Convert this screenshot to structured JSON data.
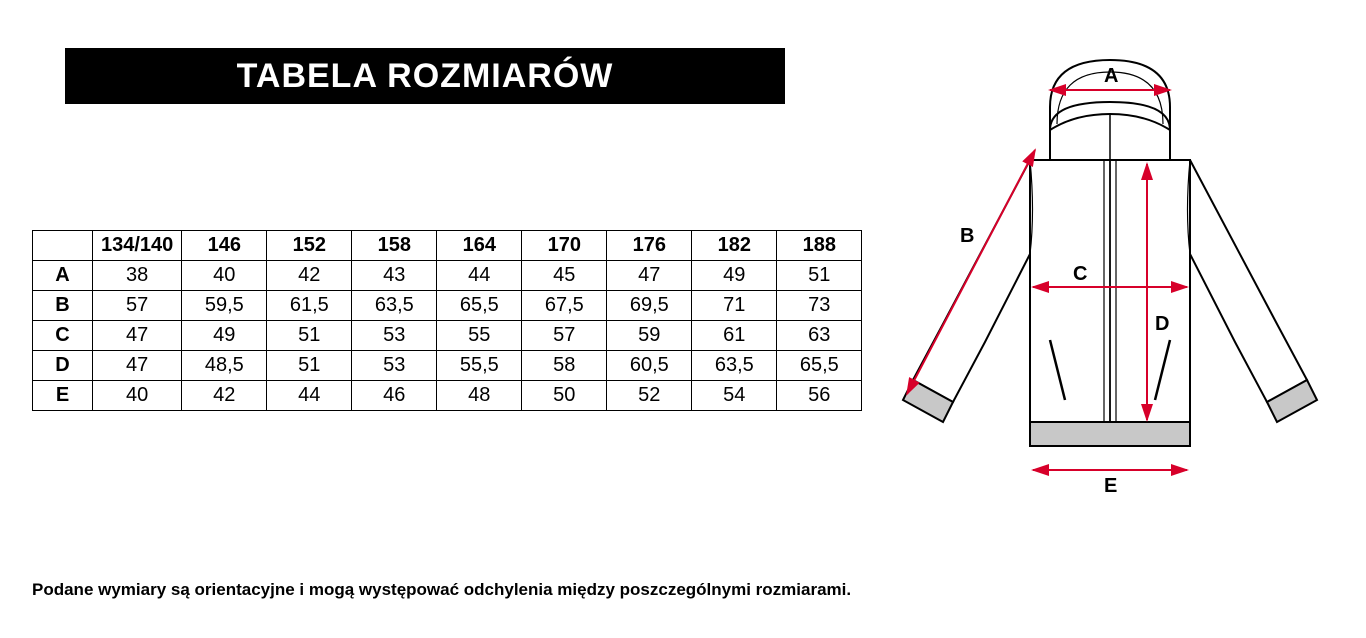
{
  "title": "TABELA ROZMIARÓW",
  "table": {
    "columns": [
      "134/140",
      "146",
      "152",
      "158",
      "164",
      "170",
      "176",
      "182",
      "188"
    ],
    "rows": [
      {
        "label": "A",
        "values": [
          "38",
          "40",
          "42",
          "43",
          "44",
          "45",
          "47",
          "49",
          "51"
        ]
      },
      {
        "label": "B",
        "values": [
          "57",
          "59,5",
          "61,5",
          "63,5",
          "65,5",
          "67,5",
          "69,5",
          "71",
          "73"
        ]
      },
      {
        "label": "C",
        "values": [
          "47",
          "49",
          "51",
          "53",
          "55",
          "57",
          "59",
          "61",
          "63"
        ]
      },
      {
        "label": "D",
        "values": [
          "47",
          "48,5",
          "51",
          "53",
          "55,5",
          "58",
          "60,5",
          "63,5",
          "65,5"
        ]
      },
      {
        "label": "E",
        "values": [
          "40",
          "42",
          "44",
          "46",
          "48",
          "50",
          "52",
          "54",
          "56"
        ]
      }
    ],
    "border_color": "#000000",
    "header_bg": "#ffffff",
    "cell_bg": "#ffffff",
    "font_size": 20
  },
  "footnote": "Podane wymiary są orientacyjne i mogą występować odchylenia między poszczególnymi rozmiarami.",
  "diagram": {
    "labels": {
      "A": "A",
      "B": "B",
      "C": "C",
      "D": "D",
      "E": "E"
    },
    "arrow_color": "#d7002a",
    "outline_color": "#000000",
    "rib_fill": "#c8c8c8",
    "label_fontsize": 20
  },
  "colors": {
    "title_bg": "#000000",
    "title_fg": "#ffffff",
    "page_bg": "#ffffff"
  }
}
